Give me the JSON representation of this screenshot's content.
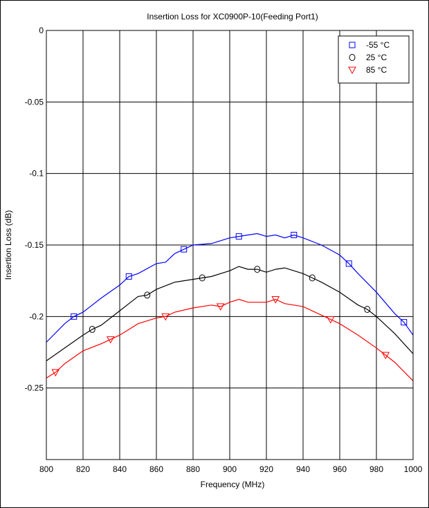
{
  "chart_data": {
    "type": "line",
    "title": "Insertion Loss for XC0900P-10(Feeding Port1)",
    "xlabel": "Frequency (MHz)",
    "ylabel": "Insertion Loss (dB)",
    "xlim": [
      800,
      1000
    ],
    "ylim": [
      -0.3,
      0
    ],
    "xticks": [
      800,
      820,
      840,
      860,
      880,
      900,
      920,
      940,
      960,
      980,
      1000
    ],
    "xtick_labels": [
      "800",
      "820",
      "840",
      "860",
      "880",
      "900",
      "920",
      "940",
      "960",
      "980",
      "1000"
    ],
    "yticks": [
      0,
      -0.05,
      -0.1,
      -0.15,
      -0.2,
      -0.25
    ],
    "ytick_labels": [
      "0",
      "-0.05",
      "-0.1",
      "-0.15",
      "-0.2",
      "-0.25"
    ],
    "grid": true,
    "legend_position": "top-right",
    "series": [
      {
        "name": "-55 °C",
        "color": "#0000ff",
        "marker": "square",
        "x": [
          800,
          810,
          815,
          820,
          830,
          840,
          845,
          850,
          860,
          865,
          870,
          875,
          880,
          890,
          895,
          900,
          905,
          910,
          915,
          920,
          925,
          930,
          935,
          940,
          950,
          960,
          965,
          970,
          980,
          990,
          995,
          1000
        ],
        "y": [
          -0.218,
          -0.205,
          -0.2,
          -0.197,
          -0.187,
          -0.178,
          -0.172,
          -0.17,
          -0.163,
          -0.162,
          -0.156,
          -0.153,
          -0.15,
          -0.149,
          -0.147,
          -0.145,
          -0.144,
          -0.143,
          -0.142,
          -0.144,
          -0.143,
          -0.145,
          -0.143,
          -0.145,
          -0.15,
          -0.157,
          -0.163,
          -0.17,
          -0.183,
          -0.198,
          -0.204,
          -0.213
        ],
        "marker_x": [
          815,
          845,
          875,
          905,
          935,
          965,
          995
        ],
        "marker_y": [
          -0.2,
          -0.172,
          -0.153,
          -0.144,
          -0.143,
          -0.163,
          -0.204
        ]
      },
      {
        "name": "25 °C",
        "color": "#000000",
        "marker": "circle",
        "x": [
          800,
          810,
          820,
          825,
          830,
          840,
          845,
          850,
          855,
          860,
          870,
          880,
          885,
          890,
          900,
          905,
          910,
          915,
          920,
          925,
          930,
          940,
          945,
          950,
          960,
          970,
          975,
          980,
          990,
          1000
        ],
        "y": [
          -0.231,
          -0.222,
          -0.213,
          -0.209,
          -0.206,
          -0.196,
          -0.191,
          -0.186,
          -0.185,
          -0.181,
          -0.176,
          -0.174,
          -0.173,
          -0.172,
          -0.168,
          -0.165,
          -0.167,
          -0.167,
          -0.169,
          -0.167,
          -0.166,
          -0.17,
          -0.173,
          -0.176,
          -0.183,
          -0.192,
          -0.195,
          -0.2,
          -0.212,
          -0.226
        ],
        "marker_x": [
          825,
          855,
          885,
          915,
          945,
          975
        ],
        "marker_y": [
          -0.209,
          -0.185,
          -0.173,
          -0.167,
          -0.173,
          -0.195
        ]
      },
      {
        "name": "85 °C",
        "color": "#ff0000",
        "marker": "triangle-down",
        "x": [
          800,
          805,
          810,
          820,
          830,
          835,
          840,
          850,
          860,
          865,
          870,
          880,
          890,
          895,
          900,
          905,
          910,
          920,
          925,
          930,
          940,
          950,
          955,
          960,
          970,
          980,
          985,
          990,
          1000
        ],
        "y": [
          -0.243,
          -0.239,
          -0.233,
          -0.224,
          -0.219,
          -0.216,
          -0.213,
          -0.205,
          -0.201,
          -0.2,
          -0.197,
          -0.194,
          -0.192,
          -0.193,
          -0.19,
          -0.188,
          -0.19,
          -0.19,
          -0.188,
          -0.191,
          -0.193,
          -0.199,
          -0.202,
          -0.205,
          -0.213,
          -0.222,
          -0.227,
          -0.232,
          -0.245
        ],
        "marker_x": [
          805,
          835,
          865,
          895,
          925,
          955,
          985
        ],
        "marker_y": [
          -0.239,
          -0.216,
          -0.2,
          -0.193,
          -0.188,
          -0.202,
          -0.227
        ]
      }
    ]
  }
}
